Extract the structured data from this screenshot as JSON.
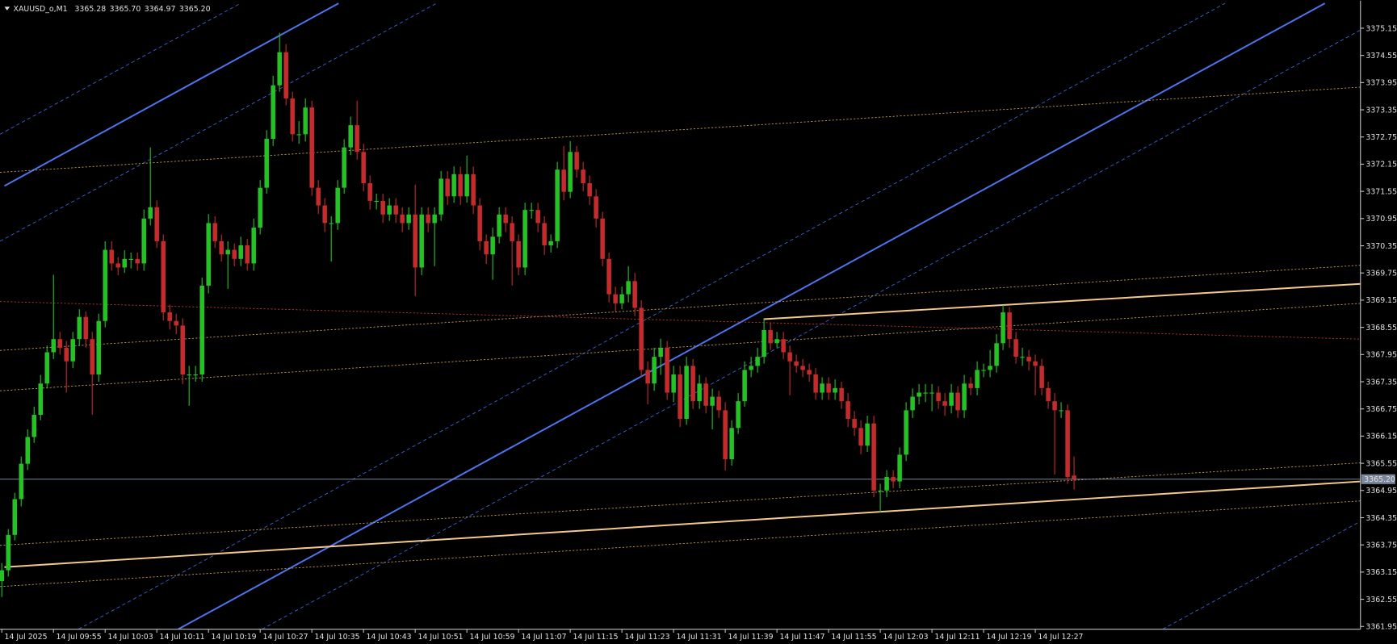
{
  "chart_data": {
    "type": "candlestick",
    "title": "XAUUSD_o,M1",
    "header_values": [
      3365.28,
      {
        "value": 3365.7,
        "label": "3365.70"
      },
      3364.97,
      {
        "value": 3365.2,
        "label": "3365.20"
      }
    ],
    "last_price": {
      "value": 3365.2,
      "label": "3365.20"
    },
    "up_color": "#22c322",
    "down_color": "#c62a2a",
    "background": "#000000",
    "grid": false,
    "xlim": [
      -0.28,
      210.34
    ],
    "ylim": [
      3361.89,
      3375.76
    ],
    "yticks": [
      3375.15,
      3374.55,
      3373.95,
      3373.35,
      3372.75,
      3372.15,
      3371.55,
      3370.95,
      3370.35,
      3369.75,
      3369.15,
      3368.55,
      3367.95,
      3367.35,
      3366.75,
      3366.15,
      3365.55,
      3364.95,
      3364.35,
      3363.75,
      3363.15,
      3362.55,
      3361.95
    ],
    "categories": [
      "14 Jul 2025",
      null,
      null,
      null,
      null,
      null,
      null,
      null,
      "14 Jul 09:55",
      null,
      null,
      null,
      null,
      null,
      null,
      null,
      "14 Jul 10:03",
      null,
      null,
      null,
      null,
      null,
      null,
      null,
      "14 Jul 10:11",
      null,
      null,
      null,
      null,
      null,
      null,
      null,
      "14 Jul 10:19",
      null,
      null,
      null,
      null,
      null,
      null,
      null,
      "14 Jul 10:27",
      null,
      null,
      null,
      null,
      null,
      null,
      null,
      "14 Jul 10:35",
      null,
      null,
      null,
      null,
      null,
      null,
      null,
      "14 Jul 10:43",
      null,
      null,
      null,
      null,
      null,
      null,
      null,
      "14 Jul 10:51",
      null,
      null,
      null,
      null,
      null,
      null,
      null,
      "14 Jul 10:59",
      null,
      null,
      null,
      null,
      null,
      null,
      null,
      "14 Jul 11:07",
      null,
      null,
      null,
      null,
      null,
      null,
      null,
      "14 Jul 11:15",
      null,
      null,
      null,
      null,
      null,
      null,
      null,
      "14 Jul 11:23",
      null,
      null,
      null,
      null,
      null,
      null,
      null,
      "14 Jul 11:31",
      null,
      null,
      null,
      null,
      null,
      null,
      null,
      "14 Jul 11:39",
      null,
      null,
      null,
      null,
      null,
      null,
      null,
      "14 Jul 11:47",
      null,
      null,
      null,
      null,
      null,
      null,
      null,
      "14 Jul 11:55",
      null,
      null,
      null,
      null,
      null,
      null,
      null,
      "14 Jul 12:03",
      null,
      null,
      null,
      null,
      null,
      null,
      null,
      "14 Jul 12:11",
      null,
      null,
      null,
      null,
      null,
      null,
      null,
      "14 Jul 12:19",
      null,
      null,
      null,
      null,
      null,
      null,
      null,
      "14 Jul 12:27",
      null,
      null,
      null,
      null,
      null,
      null
    ],
    "ohlc": [
      [
        3362.95,
        3363.35,
        3362.6,
        3363.19
      ],
      [
        3363.19,
        3364.1,
        3363.05,
        3363.97
      ],
      [
        3363.97,
        3364.9,
        3363.85,
        3364.76
      ],
      [
        3364.76,
        3365.7,
        3364.6,
        3365.54
      ],
      [
        3365.54,
        3366.3,
        3365.4,
        3366.13
      ],
      [
        3366.13,
        3366.8,
        3366,
        3366.62
      ],
      [
        3366.62,
        3367.5,
        3366.5,
        3367.31
      ],
      [
        3367.31,
        3368.15,
        3367.2,
        3368
      ],
      [
        3368,
        3369.71,
        3367.85,
        3368.29
      ],
      [
        3368.29,
        3368.45,
        3367.95,
        3368.1
      ],
      [
        3368.1,
        3368.25,
        3367.11,
        3367.8
      ],
      [
        3367.8,
        3368.45,
        3367.65,
        3368.29
      ],
      [
        3368.29,
        3368.95,
        3368.15,
        3368.78
      ],
      [
        3368.78,
        3368.9,
        3368.1,
        3368.29
      ],
      [
        3368.29,
        3368.45,
        3366.62,
        3367.51
      ],
      [
        3367.51,
        3368.85,
        3367.35,
        3368.69
      ],
      [
        3368.69,
        3370.45,
        3368.55,
        3370.26
      ],
      [
        3370.26,
        3370.45,
        3369.8,
        3369.96
      ],
      [
        3369.96,
        3370.1,
        3369.7,
        3369.87
      ],
      [
        3369.87,
        3370.25,
        3369.75,
        3370.06
      ],
      [
        3370.06,
        3370.2,
        3369.85,
        3370.06
      ],
      [
        3370.06,
        3370.2,
        3369.8,
        3369.96
      ],
      [
        3369.96,
        3371.15,
        3369.8,
        3370.95
      ],
      [
        3370.95,
        3372.52,
        3370.8,
        3371.2
      ],
      [
        3371.2,
        3371.35,
        3370.3,
        3370.45
      ],
      [
        3370.45,
        3370.6,
        3368.7,
        3368.88
      ],
      [
        3368.88,
        3369.05,
        3368.5,
        3368.69
      ],
      [
        3368.69,
        3368.85,
        3368.4,
        3368.59
      ],
      [
        3368.59,
        3368.75,
        3367.3,
        3367.51
      ],
      [
        3367.51,
        3367.7,
        3366.82,
        3367.51
      ],
      [
        3367.51,
        3367.7,
        3367.35,
        3367.51
      ],
      [
        3367.51,
        3369.65,
        3367.35,
        3369.47
      ],
      [
        3369.47,
        3371.05,
        3369.3,
        3370.85
      ],
      [
        3370.85,
        3371,
        3370.3,
        3370.45
      ],
      [
        3370.45,
        3370.6,
        3370,
        3370.16
      ],
      [
        3370.16,
        3370.45,
        3369.4,
        3370.26
      ],
      [
        3370.26,
        3370.4,
        3369.9,
        3370.06
      ],
      [
        3370.06,
        3370.55,
        3369.9,
        3370.36
      ],
      [
        3370.36,
        3370.5,
        3369.8,
        3369.96
      ],
      [
        3369.96,
        3370.95,
        3369.8,
        3370.75
      ],
      [
        3370.75,
        3371.8,
        3370.6,
        3371.63
      ],
      [
        3371.63,
        3372.9,
        3371.5,
        3372.71
      ],
      [
        3372.71,
        3374.1,
        3372.55,
        3373.89
      ],
      [
        3373.89,
        3375.05,
        3373.75,
        3374.62
      ],
      [
        3374.62,
        3374.8,
        3373.45,
        3373.6
      ],
      [
        3373.6,
        3373.75,
        3372.65,
        3372.81
      ],
      [
        3372.81,
        3373.1,
        3372.6,
        3372.81
      ],
      [
        3372.81,
        3373.6,
        3372.65,
        3373.4
      ],
      [
        3373.4,
        3373.55,
        3371.45,
        3371.63
      ],
      [
        3371.63,
        3371.8,
        3371.05,
        3371.24
      ],
      [
        3371.24,
        3371.4,
        3370.65,
        3370.85
      ],
      [
        3370.85,
        3371,
        3370,
        3370.85
      ],
      [
        3370.85,
        3371.8,
        3370.7,
        3371.63
      ],
      [
        3371.63,
        3372.7,
        3371.5,
        3372.52
      ],
      [
        3372.52,
        3373.2,
        3372.35,
        3373.01
      ],
      [
        3373.01,
        3373.55,
        3372.25,
        3372.42
      ],
      [
        3372.42,
        3372.6,
        3371.55,
        3371.73
      ],
      [
        3371.73,
        3371.9,
        3371.15,
        3371.34
      ],
      [
        3371.34,
        3371.5,
        3371.15,
        3371.34
      ],
      [
        3371.34,
        3371.5,
        3370.85,
        3371.04
      ],
      [
        3371.04,
        3371.4,
        3370.9,
        3371.24
      ],
      [
        3371.24,
        3371.4,
        3370.85,
        3371.04
      ],
      [
        3371.04,
        3371.2,
        3370.65,
        3370.85
      ],
      [
        3370.85,
        3371.2,
        3370.7,
        3371.04
      ],
      [
        3371.04,
        3371.7,
        3369.24,
        3369.87
      ],
      [
        3369.87,
        3371.2,
        3369.7,
        3371.04
      ],
      [
        3371.04,
        3371.2,
        3370.65,
        3370.85
      ],
      [
        3370.85,
        3371.2,
        3369.9,
        3371.04
      ],
      [
        3371.04,
        3372,
        3370.9,
        3371.83
      ],
      [
        3371.83,
        3372,
        3371.25,
        3371.44
      ],
      [
        3371.44,
        3372.1,
        3371.3,
        3371.93
      ],
      [
        3371.93,
        3372.1,
        3371.25,
        3371.44
      ],
      [
        3371.44,
        3372.34,
        3371.3,
        3371.93
      ],
      [
        3371.93,
        3372.1,
        3371.05,
        3371.24
      ],
      [
        3371.24,
        3371.4,
        3370.25,
        3370.45
      ],
      [
        3370.45,
        3370.6,
        3369.95,
        3370.16
      ],
      [
        3370.16,
        3370.75,
        3369.6,
        3370.55
      ],
      [
        3370.55,
        3371.2,
        3370.4,
        3371.04
      ],
      [
        3371.04,
        3371.2,
        3370.65,
        3370.85
      ],
      [
        3370.85,
        3371,
        3369.47,
        3370.45
      ],
      [
        3370.45,
        3370.6,
        3369.7,
        3369.87
      ],
      [
        3369.87,
        3371.3,
        3369.7,
        3371.14
      ],
      [
        3371.14,
        3371.3,
        3370.95,
        3371.14
      ],
      [
        3371.14,
        3371.3,
        3370.65,
        3370.85
      ],
      [
        3370.85,
        3371,
        3370.15,
        3370.36
      ],
      [
        3370.36,
        3370.6,
        3370.2,
        3370.45
      ],
      [
        3370.45,
        3372.2,
        3370.3,
        3372.03
      ],
      [
        3372.03,
        3372.55,
        3371.35,
        3371.54
      ],
      [
        3371.54,
        3372.66,
        3371.4,
        3372.42
      ],
      [
        3372.42,
        3372.55,
        3371.85,
        3372.03
      ],
      [
        3372.03,
        3372.2,
        3371.55,
        3371.73
      ],
      [
        3371.73,
        3371.9,
        3371.25,
        3371.44
      ],
      [
        3371.44,
        3371.6,
        3370.75,
        3370.95
      ],
      [
        3370.95,
        3371.1,
        3369.9,
        3370.06
      ],
      [
        3370.06,
        3370.2,
        3369.1,
        3369.28
      ],
      [
        3369.28,
        3369.45,
        3368.9,
        3369.08
      ],
      [
        3369.08,
        3369.45,
        3368.95,
        3369.28
      ],
      [
        3369.28,
        3369.9,
        3369.1,
        3369.57
      ],
      [
        3369.57,
        3369.75,
        3368.8,
        3368.98
      ],
      [
        3368.98,
        3369.15,
        3367.45,
        3367.61
      ],
      [
        3367.61,
        3367.8,
        3366.85,
        3367.31
      ],
      [
        3367.31,
        3368.1,
        3367.15,
        3367.9
      ],
      [
        3367.9,
        3368.3,
        3367.5,
        3368.1
      ],
      [
        3368.1,
        3368.25,
        3366.95,
        3367.11
      ],
      [
        3367.11,
        3367.7,
        3366.9,
        3367.51
      ],
      [
        3367.51,
        3367.7,
        3366.35,
        3366.53
      ],
      [
        3366.53,
        3367.9,
        3366.4,
        3367.7
      ],
      [
        3367.7,
        3367.85,
        3366.75,
        3366.92
      ],
      [
        3366.92,
        3367.5,
        3366.75,
        3367.31
      ],
      [
        3367.31,
        3367.45,
        3366.65,
        3366.82
      ],
      [
        3366.82,
        3367.2,
        3366.3,
        3367.02
      ],
      [
        3367.02,
        3367.15,
        3366.55,
        3366.72
      ],
      [
        3366.72,
        3366.9,
        3365.39,
        3365.64
      ],
      [
        3365.64,
        3366.5,
        3365.5,
        3366.33
      ],
      [
        3366.33,
        3367.1,
        3366.2,
        3366.92
      ],
      [
        3366.92,
        3367.8,
        3366.8,
        3367.61
      ],
      [
        3367.61,
        3367.9,
        3367.45,
        3367.7
      ],
      [
        3367.7,
        3368.1,
        3367.55,
        3367.9
      ],
      [
        3367.9,
        3368.73,
        3367.75,
        3368.49
      ],
      [
        3368.49,
        3368.65,
        3368.05,
        3368.2
      ],
      [
        3368.2,
        3368.45,
        3368.1,
        3368.29
      ],
      [
        3368.29,
        3368.45,
        3367.85,
        3368
      ],
      [
        3368,
        3368.15,
        3367.05,
        3367.8
      ],
      [
        3367.8,
        3367.95,
        3367.55,
        3367.7
      ],
      [
        3367.7,
        3367.85,
        3367.45,
        3367.61
      ],
      [
        3367.61,
        3367.75,
        3367.35,
        3367.51
      ],
      [
        3367.51,
        3367.65,
        3366.95,
        3367.11
      ],
      [
        3367.11,
        3367.45,
        3366.95,
        3367.31
      ],
      [
        3367.31,
        3367.45,
        3366.95,
        3367.11
      ],
      [
        3367.11,
        3367.4,
        3366.95,
        3367.21
      ],
      [
        3367.21,
        3367.35,
        3366.75,
        3366.92
      ],
      [
        3366.92,
        3367.1,
        3366.35,
        3366.53
      ],
      [
        3366.53,
        3366.7,
        3366.15,
        3366.33
      ],
      [
        3366.33,
        3366.5,
        3365.75,
        3365.94
      ],
      [
        3365.94,
        3366.6,
        3365.8,
        3366.43
      ],
      [
        3366.43,
        3366.6,
        3364.8,
        3364.95
      ],
      [
        3364.95,
        3365.1,
        3364.46,
        3364.95
      ],
      [
        3364.95,
        3365.4,
        3364.8,
        3365.25
      ],
      [
        3365.25,
        3365.4,
        3365,
        3365.15
      ],
      [
        3365.15,
        3365.9,
        3365,
        3365.74
      ],
      [
        3365.74,
        3366.9,
        3365.6,
        3366.72
      ],
      [
        3366.72,
        3367.2,
        3366.55,
        3367.02
      ],
      [
        3367.02,
        3367.3,
        3366.85,
        3367.11
      ],
      [
        3367.11,
        3367.3,
        3366.9,
        3367.11
      ],
      [
        3367.11,
        3367.3,
        3366.7,
        3367.11
      ],
      [
        3367.11,
        3367.25,
        3366.75,
        3366.92
      ],
      [
        3366.92,
        3367.1,
        3366.6,
        3366.82
      ],
      [
        3366.82,
        3367.3,
        3366.65,
        3367.11
      ],
      [
        3367.11,
        3367.25,
        3366.55,
        3366.72
      ],
      [
        3366.72,
        3367.5,
        3366.55,
        3367.31
      ],
      [
        3367.31,
        3367.45,
        3367.05,
        3367.21
      ],
      [
        3367.21,
        3367.8,
        3367.05,
        3367.61
      ],
      [
        3367.61,
        3367.75,
        3367.45,
        3367.61
      ],
      [
        3367.61,
        3368.05,
        3367.45,
        3367.7
      ],
      [
        3367.7,
        3368.4,
        3367.55,
        3368.2
      ],
      [
        3368.2,
        3369.04,
        3368.05,
        3368.88
      ],
      [
        3368.88,
        3369,
        3368.1,
        3368.29
      ],
      [
        3368.29,
        3368.45,
        3367.75,
        3367.9
      ],
      [
        3367.9,
        3368.1,
        3367.7,
        3367.9
      ],
      [
        3367.9,
        3368.05,
        3367.6,
        3367.8
      ],
      [
        3367.8,
        3367.95,
        3367.05,
        3367.7
      ],
      [
        3367.7,
        3367.85,
        3367.05,
        3367.21
      ],
      [
        3367.21,
        3367.35,
        3366.75,
        3366.92
      ],
      [
        3366.92,
        3367.1,
        3365.3,
        3366.72
      ],
      [
        3366.72,
        3366.9,
        3366.55,
        3366.72
      ],
      [
        3366.72,
        3366.85,
        3365.1,
        3365.25
      ],
      [
        3365.28,
        3365.7,
        3364.97,
        3365.2
      ]
    ],
    "lines": [
      {
        "color": "#4d74f0",
        "style": "solid",
        "start": [
          27.31,
          3361.89
        ],
        "end": [
          204.83,
          3375.7
        ]
      },
      {
        "color": "#4d74f0",
        "style": "solid",
        "start": [
          0.41,
          3371.67
        ],
        "end": [
          52.14,
          3375.7
        ]
      },
      {
        "color": "#3f63d8",
        "style": "dash",
        "start": [
          -0.28,
          3372.81
        ],
        "end": [
          36.97,
          3375.7
        ]
      },
      {
        "color": "#3f63d8",
        "style": "dash",
        "start": [
          -0.28,
          3370.45
        ],
        "end": [
          67.31,
          3375.7
        ]
      },
      {
        "color": "#3f63d8",
        "style": "dash",
        "start": [
          11.86,
          3361.89
        ],
        "end": [
          189.38,
          3375.7
        ]
      },
      {
        "color": "#3f63d8",
        "style": "dash",
        "start": [
          40.28,
          3361.89
        ],
        "end": [
          210.34,
          3375.11
        ]
      },
      {
        "color": "#3f63d8",
        "style": "dash",
        "start": [
          179.72,
          3361.89
        ],
        "end": [
          210.34,
          3364.27
        ]
      },
      {
        "color": "#f3c98c",
        "style": "solid",
        "start": [
          0.41,
          3363.26
        ],
        "end": [
          210.34,
          3365.15
        ]
      },
      {
        "color": "#f3c98c",
        "style": "solid",
        "start": [
          117.93,
          3368.73
        ],
        "end": [
          210.34,
          3369.51
        ]
      },
      {
        "color": "#c99a52",
        "style": "dot",
        "start": [
          -0.28,
          3371.97
        ],
        "end": [
          210.34,
          3373.85
        ]
      },
      {
        "color": "#c99a52",
        "style": "dot",
        "start": [
          -0.28,
          3368.04
        ],
        "end": [
          210.34,
          3369.92
        ]
      },
      {
        "color": "#c99a52",
        "style": "dot",
        "start": [
          -0.28,
          3367.15
        ],
        "end": [
          210.34,
          3369.08
        ]
      },
      {
        "color": "#c99a52",
        "style": "dot",
        "start": [
          -0.28,
          3363.74
        ],
        "end": [
          210.34,
          3365.56
        ]
      },
      {
        "color": "#c99a52",
        "style": "dot",
        "start": [
          -0.28,
          3362.83
        ],
        "end": [
          210.34,
          3364.72
        ]
      },
      {
        "color": "#b83a2e",
        "style": "dot",
        "start": [
          -0.28,
          3369.12
        ],
        "end": [
          210.34,
          3368.29
        ]
      }
    ]
  }
}
